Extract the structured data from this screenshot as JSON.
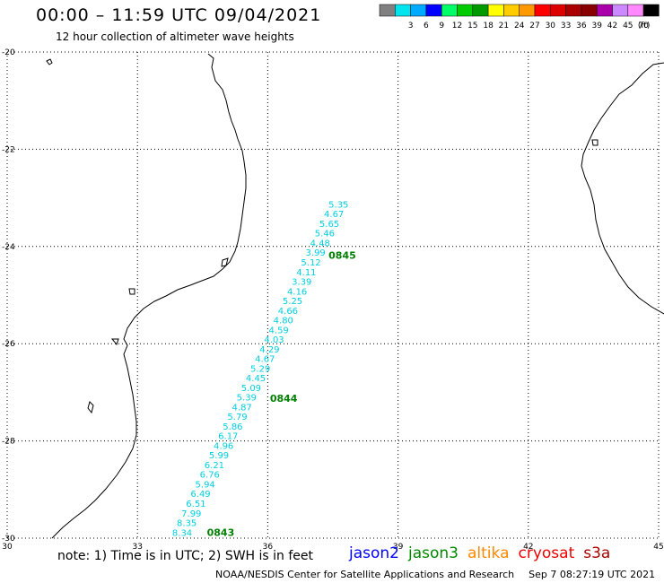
{
  "header": {
    "title": "00:00 – 11:59 UTC 09/04/2021",
    "subtitle": "12 hour collection of altimeter wave heights"
  },
  "color_scale": {
    "unit_label": "(ft)",
    "bins": [
      {
        "label": "",
        "color": "#808080"
      },
      {
        "label": "3",
        "color": "#00e5ee"
      },
      {
        "label": "6",
        "color": "#00aaff"
      },
      {
        "label": "9",
        "color": "#0000ff"
      },
      {
        "label": "12",
        "color": "#00ff66"
      },
      {
        "label": "15",
        "color": "#00cc00"
      },
      {
        "label": "18",
        "color": "#009900"
      },
      {
        "label": "21",
        "color": "#ffff00"
      },
      {
        "label": "24",
        "color": "#ffcc00"
      },
      {
        "label": "27",
        "color": "#ff9900"
      },
      {
        "label": "30",
        "color": "#ff0000"
      },
      {
        "label": "33",
        "color": "#dd0000"
      },
      {
        "label": "36",
        "color": "#aa0000"
      },
      {
        "label": "39",
        "color": "#880000"
      },
      {
        "label": "42",
        "color": "#aa00aa"
      },
      {
        "label": "45",
        "color": "#cc88ff"
      },
      {
        "label": "70",
        "color": "#ff88ff"
      },
      {
        "label": "",
        "color": "#000000"
      }
    ]
  },
  "chart_data": {
    "type": "scatter",
    "lon_range": [
      30,
      45
    ],
    "lat_range": [
      -30,
      -20
    ],
    "lon_ticks": [
      "30",
      "33",
      "36",
      "39",
      "42",
      "45"
    ],
    "lat_ticks": [
      "-20",
      "-22",
      "-24",
      "-26",
      "-28",
      "-30"
    ],
    "grid": true,
    "track": {
      "color": "#00d0e0",
      "start": {
        "lon": 33.8,
        "lat": -29.95
      },
      "end": {
        "lon": 37.4,
        "lat": -23.2
      },
      "values": [
        "8.34",
        "8.35",
        "7.99",
        "6.51",
        "6.49",
        "5.94",
        "6.76",
        "6.21",
        "5.99",
        "4.96",
        "6.17",
        "5.86",
        "5.79",
        "4.87",
        "5.39",
        "5.09",
        "4.45",
        "5.29",
        "4.67",
        "4.29",
        "4.03",
        "4.59",
        "4.80",
        "4.66",
        "5.25",
        "4.16",
        "3.39",
        "4.11",
        "5.12",
        "3.99",
        "4.48",
        "5.46",
        "5.65",
        "4.67",
        "5.35"
      ]
    },
    "time_labels": [
      {
        "text": "0843",
        "lon": 34.6,
        "lat": -29.95,
        "color": "#008000"
      },
      {
        "text": "0844",
        "lon": 36.05,
        "lat": -27.2,
        "color": "#008000"
      },
      {
        "text": "0845",
        "lon": 37.4,
        "lat": -24.25,
        "color": "#008000"
      }
    ]
  },
  "footer": {
    "note": "note: 1) Time is in UTC; 2) SWH is in feet",
    "satellites": [
      {
        "name": "jason2",
        "color": "#0000ff"
      },
      {
        "name": "jason3",
        "color": "#008800"
      },
      {
        "name": "altika",
        "color": "#ff8800"
      },
      {
        "name": "cryosat",
        "color": "#ee0000"
      },
      {
        "name": "s3a",
        "color": "#aa0000"
      }
    ],
    "credit": "NOAA/NESDIS Center for Satellite Applications and Research",
    "timestamp": "Sep  7 08:27:19 UTC 2021"
  }
}
